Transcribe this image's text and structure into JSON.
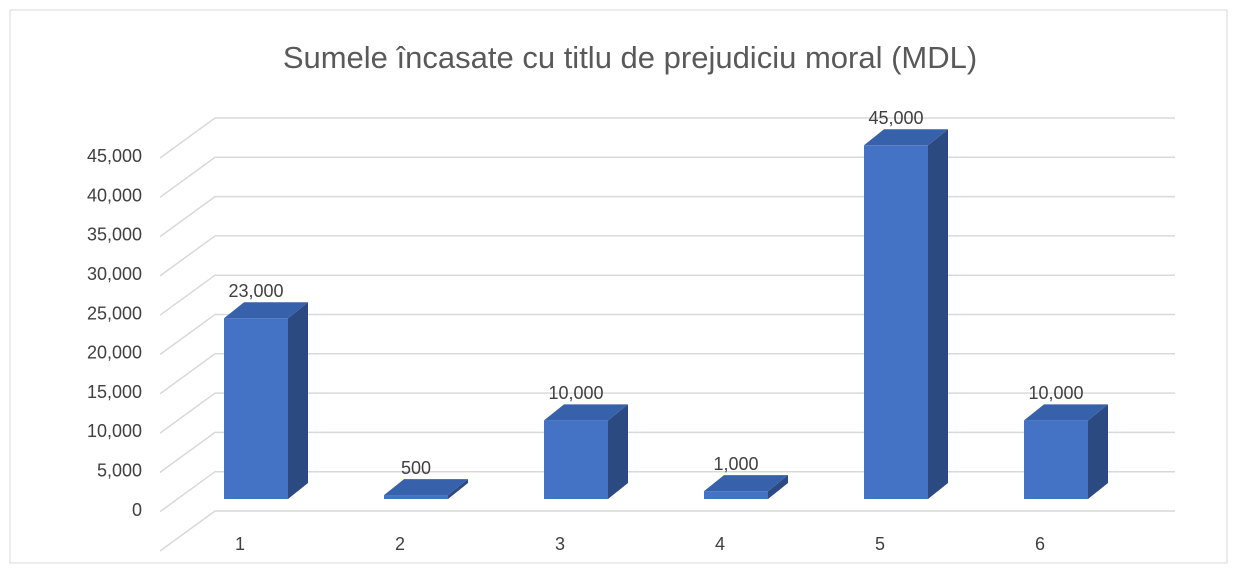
{
  "chart_data": {
    "type": "bar3d",
    "title": "Sumele încasate cu titlu de prejudiciu moral (MDL)",
    "categories": [
      "1",
      "2",
      "3",
      "4",
      "5",
      "6"
    ],
    "values": [
      23000,
      500,
      10000,
      1000,
      45000,
      10000
    ],
    "value_labels": [
      "23,000",
      "500",
      "10,000",
      "1,000",
      "45,000",
      "10,000"
    ],
    "color": "#4472c4",
    "ylim": [
      0,
      50000
    ],
    "yticks": [
      0,
      {
        "value": 5000,
        "label": "5,000"
      },
      {
        "value": 10000,
        "label": "10,000"
      },
      {
        "value": 15000,
        "label": "15,000"
      },
      {
        "value": 20000,
        "label": "20,000"
      },
      {
        "value": 25000,
        "label": "25,000"
      },
      {
        "value": 30000,
        "label": "30,000"
      },
      {
        "value": 35000,
        "label": "35,000"
      },
      {
        "value": 40000,
        "label": "40,000"
      },
      {
        "value": 45000,
        "label": "45,000"
      }
    ],
    "grid": true
  }
}
